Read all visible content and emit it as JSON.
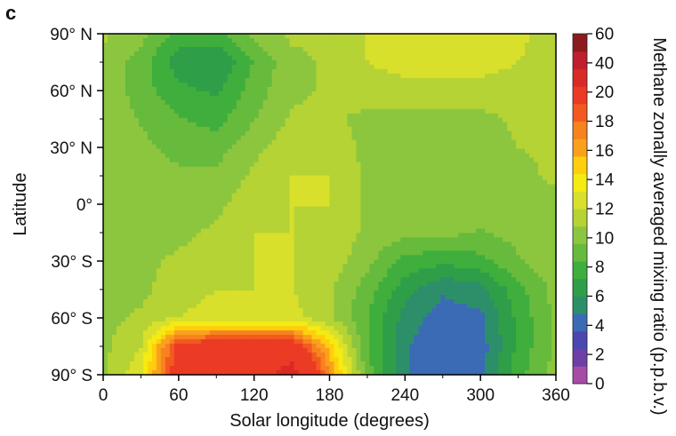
{
  "panel_label": "c",
  "chart_data": {
    "type": "heatmap",
    "title": "",
    "xlabel": "Solar longitude (degrees)",
    "ylabel": "Latitude",
    "x_ticks": [
      {
        "value": 0,
        "label": "0"
      },
      {
        "value": 60,
        "label": "60"
      },
      {
        "value": 120,
        "label": "120"
      },
      {
        "value": 180,
        "label": "180"
      },
      {
        "value": 240,
        "label": "240"
      },
      {
        "value": 300,
        "label": "300"
      },
      {
        "value": 360,
        "label": "360"
      }
    ],
    "y_ticks": [
      {
        "value": 90,
        "label": "90° N"
      },
      {
        "value": 60,
        "label": "60° N"
      },
      {
        "value": 30,
        "label": "30° N"
      },
      {
        "value": 0,
        "label": "0°"
      },
      {
        "value": -30,
        "label": "30° S"
      },
      {
        "value": -60,
        "label": "60° S"
      },
      {
        "value": -90,
        "label": "90° S"
      }
    ],
    "xlim": [
      0,
      360
    ],
    "ylim": [
      -90,
      90
    ],
    "grid": false,
    "colorbar": {
      "label": "Methane zonally averaged mixing ratio (p.p.b.v.)",
      "tick_labels": [
        "0",
        "2",
        "4",
        "6",
        "8",
        "10",
        "12",
        "14",
        "16",
        "18",
        "20",
        "40",
        "60"
      ],
      "colors": [
        "#a64ca6",
        "#6d3fa7",
        "#4a47b0",
        "#3a6bb4",
        "#2c8f6a",
        "#2e9e48",
        "#3fae3c",
        "#66ba3c",
        "#8cc63f",
        "#b5d334",
        "#d8e02c",
        "#f5ea12",
        "#ffcf0d",
        "#fba01c",
        "#f7821e",
        "#f25a20",
        "#eb3b24",
        "#d92a26",
        "#be1e2d",
        "#8c1a1f"
      ]
    },
    "field": {
      "lon": [
        0,
        30,
        60,
        90,
        120,
        150,
        180,
        210,
        240,
        270,
        300,
        330,
        360
      ],
      "lat": [
        90,
        75,
        60,
        45,
        30,
        15,
        0,
        -15,
        -30,
        -45,
        -60,
        -75,
        -90
      ],
      "values_ppbv": [
        [
          11,
          10,
          8,
          8,
          10,
          11,
          11,
          12,
          13,
          13,
          13,
          12.5,
          11
        ],
        [
          10.5,
          9,
          6.5,
          6,
          8.5,
          10.5,
          11,
          12,
          12.5,
          12.5,
          12.5,
          12,
          11
        ],
        [
          10.5,
          9,
          7.5,
          7,
          9,
          10.5,
          11,
          11.5,
          11.5,
          11.5,
          11.5,
          11.5,
          11
        ],
        [
          10.5,
          9.5,
          8.5,
          8,
          9.5,
          11,
          11,
          10.5,
          10.5,
          10.5,
          10.5,
          11,
          11
        ],
        [
          10.5,
          10,
          9,
          9,
          10.5,
          11.5,
          11.5,
          10.5,
          10.2,
          10.2,
          10.2,
          10.8,
          11
        ],
        [
          10.5,
          10.5,
          10,
          10,
          11,
          12,
          12,
          10.5,
          10,
          10,
          10,
          10.5,
          11
        ],
        [
          10.5,
          10.5,
          10.5,
          10.5,
          11.5,
          12,
          12,
          10.5,
          10,
          10,
          10,
          10.2,
          10.5
        ],
        [
          10.5,
          10.5,
          10.5,
          11,
          12,
          12,
          11.8,
          10.5,
          10,
          10,
          9.5,
          10,
          10.5
        ],
        [
          10.5,
          10.5,
          11,
          11.5,
          12,
          12,
          11.5,
          10,
          8,
          7.5,
          8,
          9.5,
          10.5
        ],
        [
          10.5,
          10.5,
          11.5,
          12,
          12,
          12,
          11,
          9,
          6.5,
          5,
          5.5,
          8,
          10
        ],
        [
          10.5,
          11,
          12,
          12.5,
          12.5,
          12.5,
          11,
          8.5,
          5.5,
          4.2,
          4.5,
          7.5,
          10
        ],
        [
          10.5,
          12,
          20,
          21,
          21,
          21,
          15,
          8.5,
          5,
          3.8,
          4.2,
          7.5,
          10
        ],
        [
          10.5,
          13,
          21,
          22,
          22,
          26,
          17,
          9,
          5,
          3.8,
          4.2,
          8,
          10
        ]
      ]
    }
  }
}
